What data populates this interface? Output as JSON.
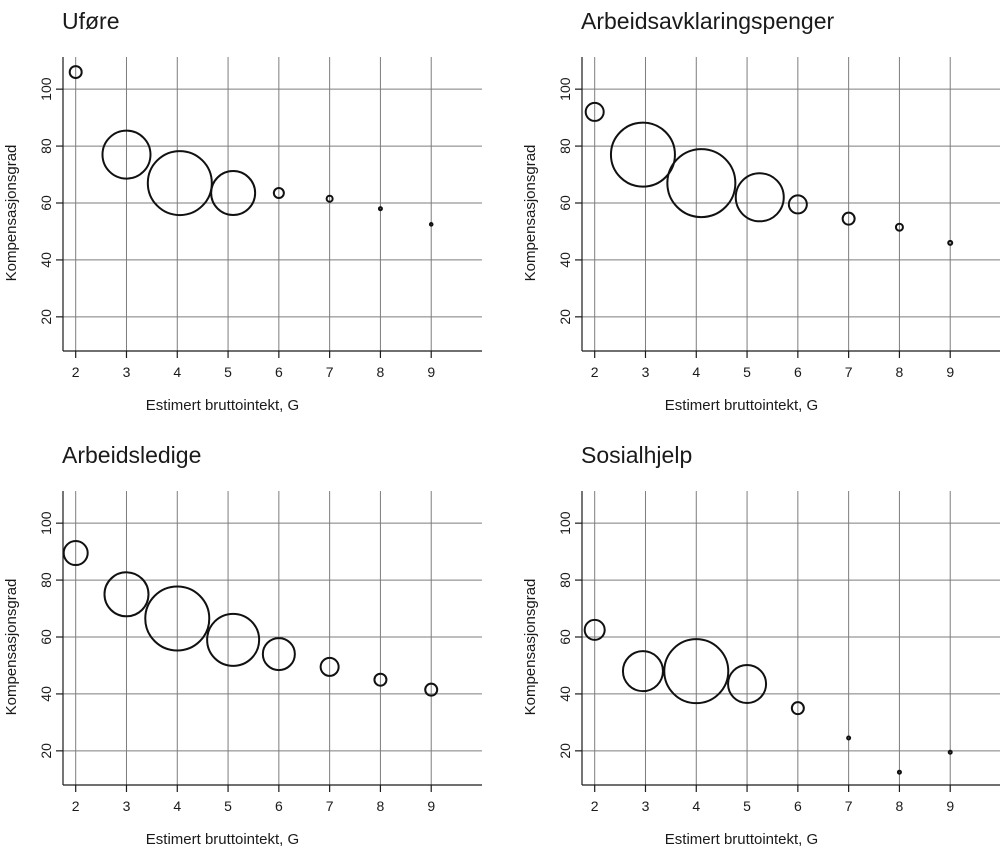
{
  "chart_data": [
    {
      "type": "scatter",
      "title": "Uføre",
      "xlabel": "Estimert bruttointekt, G",
      "ylabel": "Kompensasjonsgrad",
      "xlim": [
        1.75,
        10.0
      ],
      "ylim": [
        8,
        112
      ],
      "xticks": [
        2,
        3,
        4,
        5,
        6,
        7,
        8,
        9
      ],
      "yticks": [
        20,
        40,
        60,
        80,
        100
      ],
      "grid": true,
      "points": [
        {
          "x": 2.0,
          "y": 106,
          "size": 6
        },
        {
          "x": 3.0,
          "y": 77,
          "size": 24
        },
        {
          "x": 4.05,
          "y": 67,
          "size": 32
        },
        {
          "x": 5.1,
          "y": 63.5,
          "size": 22
        },
        {
          "x": 6.0,
          "y": 63.5,
          "size": 5
        },
        {
          "x": 7.0,
          "y": 61.5,
          "size": 3
        },
        {
          "x": 8.0,
          "y": 58,
          "size": 1.5
        },
        {
          "x": 9.0,
          "y": 52.5,
          "size": 0.6
        }
      ]
    },
    {
      "type": "scatter",
      "title": "Arbeidsavklaringspenger",
      "xlabel": "Estimert bruttointekt, G",
      "ylabel": "Kompensasjonsgrad",
      "xlim": [
        1.75,
        10.0
      ],
      "ylim": [
        8,
        112
      ],
      "xticks": [
        2,
        3,
        4,
        5,
        6,
        7,
        8,
        9
      ],
      "yticks": [
        20,
        40,
        60,
        80,
        100
      ],
      "grid": true,
      "points": [
        {
          "x": 2.0,
          "y": 92,
          "size": 9
        },
        {
          "x": 2.95,
          "y": 77,
          "size": 32
        },
        {
          "x": 4.1,
          "y": 67,
          "size": 34
        },
        {
          "x": 5.25,
          "y": 62,
          "size": 24
        },
        {
          "x": 6.0,
          "y": 59.5,
          "size": 9
        },
        {
          "x": 7.0,
          "y": 54.5,
          "size": 6
        },
        {
          "x": 8.0,
          "y": 51.5,
          "size": 3.5
        },
        {
          "x": 9.0,
          "y": 46,
          "size": 2
        }
      ]
    },
    {
      "type": "scatter",
      "title": "Arbeidsledige",
      "xlabel": "Estimert bruttointekt, G",
      "ylabel": "Kompensasjonsgrad",
      "xlim": [
        1.75,
        10.0
      ],
      "ylim": [
        8,
        112
      ],
      "xticks": [
        2,
        3,
        4,
        5,
        6,
        7,
        8,
        9
      ],
      "yticks": [
        20,
        40,
        60,
        80,
        100
      ],
      "grid": true,
      "points": [
        {
          "x": 2.0,
          "y": 89.5,
          "size": 12
        },
        {
          "x": 3.0,
          "y": 75,
          "size": 22
        },
        {
          "x": 4.0,
          "y": 66.5,
          "size": 32
        },
        {
          "x": 5.1,
          "y": 59,
          "size": 26
        },
        {
          "x": 6.0,
          "y": 54,
          "size": 16
        },
        {
          "x": 7.0,
          "y": 49.5,
          "size": 9
        },
        {
          "x": 8.0,
          "y": 45,
          "size": 6
        },
        {
          "x": 9.0,
          "y": 41.5,
          "size": 6
        }
      ]
    },
    {
      "type": "scatter",
      "title": "Sosialhjelp",
      "xlabel": "Estimert bruttointekt, G",
      "ylabel": "Kompensasjonsgrad",
      "xlim": [
        1.75,
        10.0
      ],
      "ylim": [
        8,
        112
      ],
      "xticks": [
        2,
        3,
        4,
        5,
        6,
        7,
        8,
        9
      ],
      "yticks": [
        20,
        40,
        60,
        80,
        100
      ],
      "grid": true,
      "points": [
        {
          "x": 2.0,
          "y": 62.5,
          "size": 10
        },
        {
          "x": 2.95,
          "y": 48,
          "size": 20
        },
        {
          "x": 4.0,
          "y": 48,
          "size": 32
        },
        {
          "x": 5.0,
          "y": 43.5,
          "size": 19
        },
        {
          "x": 6.0,
          "y": 35,
          "size": 6
        },
        {
          "x": 7.0,
          "y": 24.5,
          "size": 1.5
        },
        {
          "x": 8.0,
          "y": 12.5,
          "size": 1.5
        },
        {
          "x": 9.0,
          "y": 19.5,
          "size": 1.5
        }
      ]
    }
  ]
}
